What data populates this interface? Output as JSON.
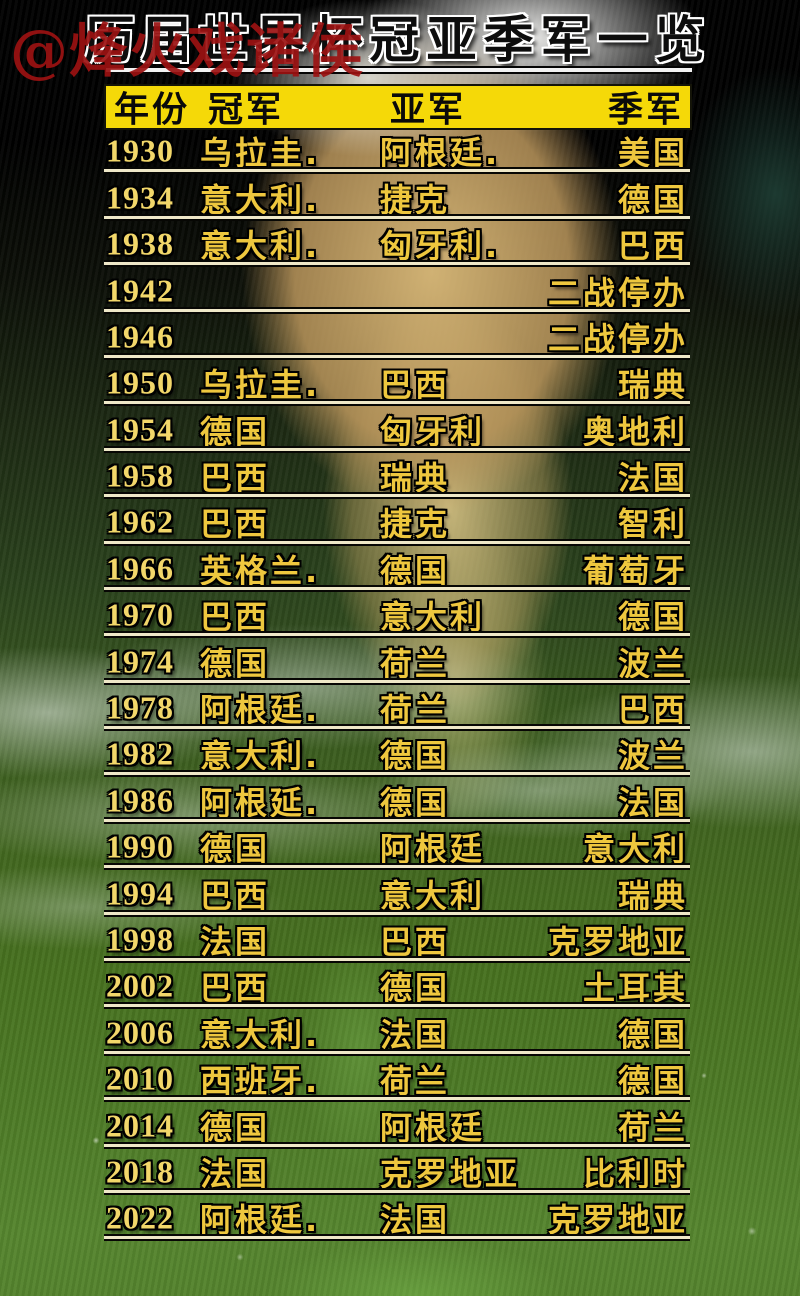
{
  "watermark": "@烽火戏诸侯",
  "title": "历届世界杯冠亚季军一览",
  "colors": {
    "header_bg": "#f5d908",
    "country_text_yellow": "#eec73e",
    "year_text_yellow": "#f2d76a",
    "watermark_red": "#9c1212",
    "title_fill": "#0d0d0d",
    "title_outline": "#ffffff"
  },
  "chart_data": {
    "type": "table",
    "title": "历届世界杯冠亚季军一览",
    "columns": [
      "年份",
      "冠军",
      "亚军",
      "季军"
    ],
    "rows": [
      [
        "1930",
        "乌拉圭.",
        "阿根廷.",
        "美国"
      ],
      [
        "1934",
        "意大利.",
        "捷克",
        "德国"
      ],
      [
        "1938",
        "意大利.",
        "匈牙利.",
        "巴西"
      ],
      [
        "1942",
        "",
        "",
        "二战停办"
      ],
      [
        "1946",
        "",
        "",
        "二战停办"
      ],
      [
        "1950",
        "乌拉圭.",
        "巴西",
        "瑞典"
      ],
      [
        "1954",
        "德国",
        "匈牙利",
        "奥地利"
      ],
      [
        "1958",
        "巴西",
        "瑞典",
        "法国"
      ],
      [
        "1962",
        "巴西",
        "捷克",
        "智利"
      ],
      [
        "1966",
        "英格兰.",
        "德国",
        "葡萄牙"
      ],
      [
        "1970",
        "巴西",
        "意大利",
        "德国"
      ],
      [
        "1974",
        "德国",
        "荷兰",
        "波兰"
      ],
      [
        "1978",
        "阿根廷.",
        "荷兰",
        "巴西"
      ],
      [
        "1982",
        "意大利.",
        "德国",
        "波兰"
      ],
      [
        "1986",
        "阿根延.",
        "德国",
        "法国"
      ],
      [
        "1990",
        "德国",
        "阿根廷",
        "意大利"
      ],
      [
        "1994",
        "巴西",
        "意大利",
        "瑞典"
      ],
      [
        "1998",
        "法国",
        "巴西",
        "克罗地亚"
      ],
      [
        "2002",
        "巴西",
        "德国",
        "土耳其"
      ],
      [
        "2006",
        "意大利.",
        "法国",
        "德国"
      ],
      [
        "2010",
        "西班牙.",
        "荷兰",
        "德国"
      ],
      [
        "2014",
        "德国",
        "阿根廷",
        "荷兰"
      ],
      [
        "2018",
        "法国",
        "克罗地亚",
        "比利时"
      ],
      [
        "2022",
        "阿根廷.",
        "法国",
        "克罗地亚"
      ]
    ]
  }
}
